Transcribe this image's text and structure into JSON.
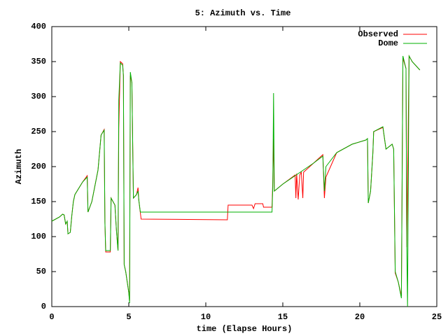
{
  "chart_data": {
    "type": "line",
    "title": "5: Azimuth vs. Time",
    "xlabel": "time (Elapse Hours)",
    "ylabel": "Azimuth",
    "xlim": [
      0,
      25
    ],
    "xticks": [
      0,
      5,
      10,
      15,
      20,
      25
    ],
    "ylim": [
      0,
      400
    ],
    "yticks": [
      0,
      50,
      100,
      150,
      200,
      250,
      300,
      350,
      400
    ],
    "grid": false,
    "legend": "top-right",
    "series": [
      {
        "name": "Observed",
        "color": "#ff0000",
        "x": [
          0,
          0.5,
          0.7,
          0.8,
          0.9,
          1.0,
          1.05,
          1.2,
          1.3,
          1.4,
          1.5,
          2.0,
          2.3,
          2.35,
          2.6,
          3.0,
          3.2,
          3.4,
          3.45,
          3.5,
          3.8,
          3.85,
          4.1,
          4.2,
          4.3,
          4.35,
          4.45,
          4.6,
          4.65,
          4.7,
          4.8,
          5.0,
          5.05,
          5.1,
          5.2,
          5.3,
          5.5,
          5.6,
          5.65,
          5.8,
          11.4,
          11.45,
          13.0,
          13.1,
          13.2,
          13.7,
          13.75,
          14.3,
          14.35,
          14.4,
          14.45,
          15,
          15.8,
          15.85,
          15.9,
          16.0,
          16.1,
          16.2,
          16.3,
          16.35,
          17,
          17.6,
          17.7,
          17.8,
          18.5,
          19.5,
          20.4,
          20.5,
          20.55,
          20.7,
          20.85,
          20.9,
          21.5,
          21.7,
          22.1,
          22.2,
          22.3,
          22.5,
          22.7,
          22.8,
          23.0,
          23.05,
          23.2,
          23.4,
          23.9
        ],
        "values": [
          122,
          128,
          132,
          131,
          118,
          122,
          104,
          106,
          130,
          150,
          160,
          178,
          187,
          135,
          150,
          195,
          245,
          253,
          120,
          78,
          78,
          155,
          145,
          108,
          80,
          255,
          350,
          347,
          330,
          60,
          50,
          20,
          8,
          330,
          320,
          155,
          160,
          170,
          152,
          125,
          124,
          145,
          145,
          140,
          147,
          147,
          142,
          142,
          180,
          240,
          165,
          175,
          188,
          155,
          190,
          153,
          188,
          192,
          155,
          192,
          205,
          217,
          155,
          185,
          220,
          232,
          238,
          240,
          148,
          165,
          220,
          250,
          256,
          225,
          232,
          225,
          48,
          35,
          15,
          355,
          340,
          85,
          358,
          350,
          338
        ]
      },
      {
        "name": "Dome",
        "color": "#00b000",
        "x": [
          0,
          0.5,
          0.7,
          0.8,
          0.9,
          1.0,
          1.05,
          1.2,
          1.3,
          1.4,
          1.5,
          2.0,
          2.3,
          2.35,
          2.6,
          3.0,
          3.2,
          3.4,
          3.45,
          3.5,
          3.8,
          3.85,
          4.1,
          4.2,
          4.3,
          4.35,
          4.45,
          4.6,
          4.65,
          4.7,
          4.8,
          5.0,
          5.05,
          5.1,
          5.2,
          5.3,
          5.5,
          5.6,
          5.65,
          5.75,
          14.3,
          14.35,
          14.4,
          14.45,
          15,
          16,
          17,
          17.6,
          17.7,
          17.8,
          18.5,
          19.5,
          20.4,
          20.5,
          20.55,
          20.7,
          20.85,
          20.9,
          21.5,
          21.7,
          22.1,
          22.2,
          22.3,
          22.5,
          22.7,
          22.8,
          23.0,
          23.05,
          23.1,
          23.2,
          23.4,
          23.9
        ],
        "values": [
          122,
          128,
          132,
          131,
          118,
          122,
          104,
          106,
          130,
          150,
          160,
          178,
          185,
          135,
          150,
          195,
          245,
          252,
          120,
          80,
          80,
          155,
          145,
          108,
          80,
          295,
          348,
          345,
          330,
          60,
          50,
          20,
          5,
          335,
          320,
          155,
          160,
          165,
          152,
          135,
          135,
          172,
          305,
          165,
          175,
          190,
          205,
          215,
          165,
          200,
          220,
          232,
          238,
          240,
          148,
          165,
          220,
          250,
          257,
          225,
          232,
          225,
          50,
          35,
          12,
          358,
          340,
          85,
          0,
          358,
          350,
          338
        ]
      }
    ]
  }
}
